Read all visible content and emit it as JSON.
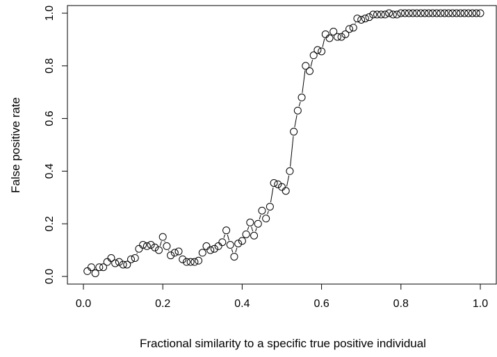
{
  "chart_data": {
    "type": "scatter",
    "title": "",
    "xlabel": "Fractional similarity to a specific true positive individual",
    "ylabel": "False positive rate",
    "xlim": [
      0.0,
      1.0
    ],
    "ylim": [
      0.0,
      1.0
    ],
    "xticks": [
      "0.0",
      "0.2",
      "0.4",
      "0.6",
      "0.8",
      "1.0"
    ],
    "yticks": [
      "0.0",
      "0.2",
      "0.4",
      "0.6",
      "0.8",
      "1.0"
    ],
    "grid": false,
    "legend": "none",
    "marker": "open-circle",
    "line": "connecting segments between points",
    "x": [
      0.01,
      0.02,
      0.03,
      0.04,
      0.05,
      0.06,
      0.07,
      0.08,
      0.09,
      0.1,
      0.11,
      0.12,
      0.13,
      0.14,
      0.15,
      0.16,
      0.17,
      0.18,
      0.19,
      0.2,
      0.21,
      0.22,
      0.23,
      0.24,
      0.25,
      0.26,
      0.27,
      0.28,
      0.29,
      0.3,
      0.31,
      0.32,
      0.33,
      0.34,
      0.35,
      0.36,
      0.37,
      0.38,
      0.39,
      0.4,
      0.41,
      0.42,
      0.43,
      0.44,
      0.45,
      0.46,
      0.47,
      0.48,
      0.49,
      0.5,
      0.51,
      0.52,
      0.53,
      0.54,
      0.55,
      0.56,
      0.57,
      0.58,
      0.59,
      0.6,
      0.61,
      0.62,
      0.63,
      0.64,
      0.65,
      0.66,
      0.67,
      0.68,
      0.69,
      0.7,
      0.71,
      0.72,
      0.73,
      0.74,
      0.75,
      0.76,
      0.77,
      0.78,
      0.79,
      0.8,
      0.81,
      0.82,
      0.83,
      0.84,
      0.85,
      0.86,
      0.87,
      0.88,
      0.89,
      0.9,
      0.91,
      0.92,
      0.93,
      0.94,
      0.95,
      0.96,
      0.97,
      0.98,
      0.99,
      1.0
    ],
    "y": [
      0.02,
      0.035,
      0.012,
      0.035,
      0.035,
      0.055,
      0.07,
      0.05,
      0.055,
      0.045,
      0.045,
      0.065,
      0.07,
      0.105,
      0.12,
      0.115,
      0.12,
      0.11,
      0.1,
      0.15,
      0.115,
      0.08,
      0.09,
      0.095,
      0.065,
      0.055,
      0.055,
      0.055,
      0.06,
      0.09,
      0.115,
      0.1,
      0.105,
      0.115,
      0.13,
      0.175,
      0.12,
      0.075,
      0.125,
      0.135,
      0.16,
      0.205,
      0.155,
      0.2,
      0.25,
      0.22,
      0.265,
      0.355,
      0.35,
      0.34,
      0.325,
      0.4,
      0.55,
      0.63,
      0.68,
      0.8,
      0.78,
      0.84,
      0.86,
      0.855,
      0.92,
      0.905,
      0.93,
      0.91,
      0.91,
      0.92,
      0.94,
      0.945,
      0.98,
      0.975,
      0.98,
      0.985,
      0.995,
      0.995,
      0.995,
      0.995,
      1.0,
      0.995,
      0.995,
      1.0,
      1.0,
      1.0,
      1.0,
      1.0,
      1.0,
      1.0,
      1.0,
      1.0,
      1.0,
      1.0,
      1.0,
      1.0,
      1.0,
      1.0,
      1.0,
      1.0,
      1.0,
      1.0,
      1.0,
      1.0
    ]
  }
}
